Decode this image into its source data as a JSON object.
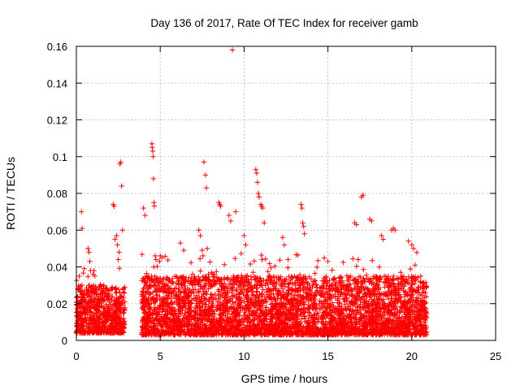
{
  "chart_data": {
    "type": "scatter",
    "title": "Day 136 of 2017, Rate Of TEC Index for receiver gamb",
    "xlabel": "GPS time / hours",
    "ylabel": "ROTI / TECUs",
    "xlim": [
      0,
      25
    ],
    "ylim": [
      0,
      0.16
    ],
    "xticks": [
      0,
      5,
      10,
      15,
      20,
      25
    ],
    "xtick_labels": [
      "0",
      "5",
      "10",
      "15",
      "20",
      "25"
    ],
    "yticks": [
      0,
      0.02,
      0.04,
      0.06,
      0.08,
      0.1,
      0.12,
      0.14,
      0.16
    ],
    "ytick_labels": [
      "0",
      "0.02",
      "0.04",
      "0.06",
      "0.08",
      "0.1",
      "0.12",
      "0.14",
      "0.16"
    ],
    "grid": true,
    "marker": "+",
    "color": "#ff0000",
    "grid_color": "#a0a0a0",
    "data_gap_hours": [
      2.9,
      3.9
    ],
    "series": [
      {
        "name": "ROTI",
        "description_ranges": [
          {
            "x_start": 0.0,
            "x_end": 2.9,
            "typical_min": 0.004,
            "typical_max": 0.03
          },
          {
            "x_start": 3.9,
            "x_end": 20.9,
            "typical_min": 0.003,
            "typical_max": 0.035
          }
        ],
        "x": [
          0.3,
          0.35,
          0.7,
          0.75,
          0.8,
          0.85,
          1.0,
          1.05,
          1.1,
          2.2,
          2.25,
          2.3,
          2.4,
          2.45,
          2.5,
          2.55,
          2.6,
          2.65,
          2.7,
          2.75,
          4.0,
          4.1,
          4.5,
          4.52,
          4.55,
          4.58,
          4.6,
          4.62,
          4.65,
          4.7,
          4.75,
          5.0,
          5.1,
          6.2,
          6.4,
          7.3,
          7.4,
          7.5,
          7.55,
          7.6,
          7.7,
          7.75,
          7.8,
          8.5,
          8.55,
          8.6,
          9.1,
          9.2,
          9.3,
          9.5,
          10.0,
          10.1,
          10.7,
          10.75,
          10.8,
          10.85,
          10.9,
          11.0,
          11.05,
          11.1,
          11.2,
          12.3,
          12.4,
          13.4,
          13.45,
          13.5,
          13.55,
          13.6,
          15.0,
          16.6,
          16.7,
          16.8,
          17.0,
          17.1,
          17.5,
          17.6,
          18.2,
          18.3,
          18.8,
          18.9,
          19.0,
          19.8,
          20.0,
          20.1,
          20.2
        ],
        "y": [
          0.07,
          0.061,
          0.05,
          0.048,
          0.043,
          0.038,
          0.036,
          0.038,
          0.035,
          0.074,
          0.073,
          0.055,
          0.057,
          0.052,
          0.044,
          0.048,
          0.096,
          0.097,
          0.084,
          0.06,
          0.072,
          0.068,
          0.107,
          0.105,
          0.103,
          0.1,
          0.088,
          0.075,
          0.073,
          0.046,
          0.044,
          0.046,
          0.045,
          0.053,
          0.049,
          0.06,
          0.057,
          0.049,
          0.046,
          0.097,
          0.09,
          0.083,
          0.05,
          0.075,
          0.074,
          0.073,
          0.068,
          0.065,
          0.158,
          0.07,
          0.057,
          0.052,
          0.093,
          0.091,
          0.086,
          0.08,
          0.078,
          0.074,
          0.073,
          0.072,
          0.064,
          0.056,
          0.052,
          0.074,
          0.072,
          0.064,
          0.062,
          0.058,
          0.043,
          0.064,
          0.063,
          0.044,
          0.078,
          0.079,
          0.066,
          0.065,
          0.057,
          0.055,
          0.06,
          0.061,
          0.06,
          0.054,
          0.052,
          0.05,
          0.041
        ]
      }
    ]
  }
}
